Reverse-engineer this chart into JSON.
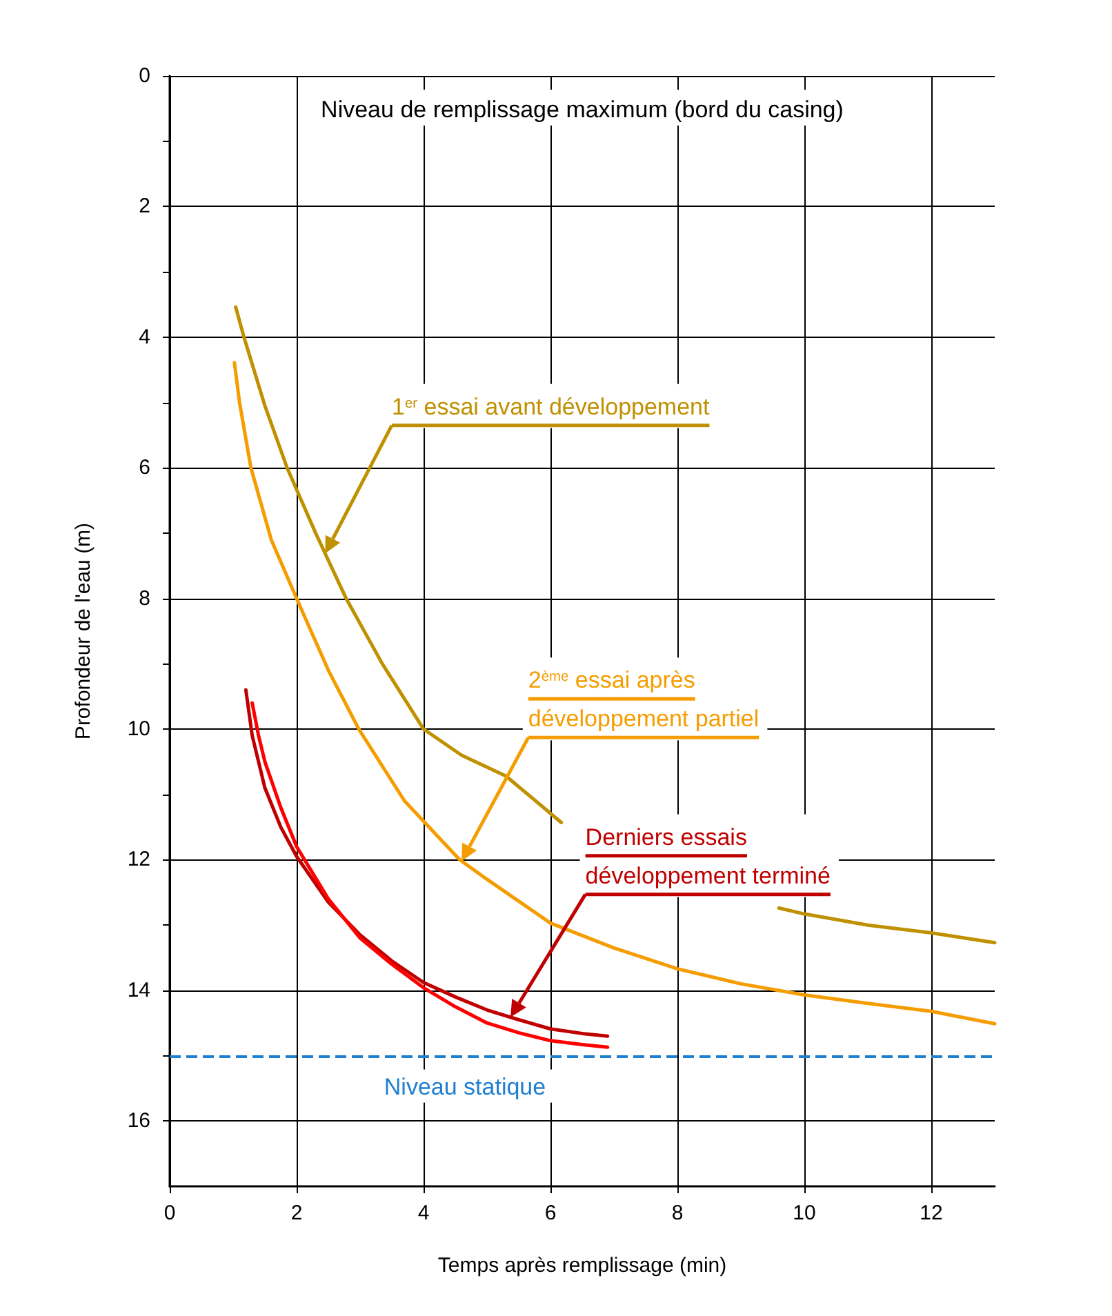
{
  "chart_data": {
    "type": "line",
    "xlabel": "Temps après remplissage (min)",
    "ylabel": "Profondeur de l'eau (m)",
    "annotations": [
      "Niveau de remplissage maximum (bord du casing)"
    ],
    "series": [
      {
        "name": "1$^{er}$ essai avant développement",
        "color": "#bf9000",
        "x": [
          1.04,
          1.17,
          1.5,
          1.85,
          2.3,
          2.78,
          3.35,
          4.0,
          4.6,
          5.3,
          6.17,
          8,
          9.6,
          10,
          11,
          12,
          13
        ],
        "values": [
          3.54,
          4,
          5.05,
          6,
          7,
          8,
          9,
          10,
          10.4,
          10.72,
          11.43,
          null,
          12.74,
          12.83,
          13.0,
          13.12,
          13.27
        ]
      },
      {
        "name": "2$^{ème}$ essai après\ndéveloppement partiel",
        "color": "#f59d00",
        "x": [
          1.02,
          1.1,
          1.28,
          1.6,
          2,
          2.5,
          2.98,
          3.7,
          4.57,
          5,
          6,
          7,
          8,
          9,
          10,
          11,
          12,
          13
        ],
        "values": [
          4.39,
          5,
          6,
          7.1,
          8,
          9.1,
          10,
          11.1,
          12,
          12.3,
          12.97,
          13.35,
          13.67,
          13.9,
          14.07,
          14.2,
          14.32,
          14.51
        ]
      },
      {
        "name": "Derniers essais\ndéveloppement terminé",
        "color": "#c00000",
        "x": [
          1.2,
          1.3,
          1.5,
          1.75,
          2,
          2.5,
          3,
          3.5,
          4,
          4.5,
          5,
          5.5,
          6,
          6.5,
          6.9
        ],
        "values": [
          9.4,
          10.1,
          10.9,
          11.5,
          11.95,
          12.65,
          13.15,
          13.55,
          13.88,
          14.1,
          14.3,
          14.45,
          14.59,
          14.66,
          14.7
        ]
      },
      {
        "color": "#ff0000",
        "x": [
          1.3,
          1.4,
          1.5,
          1.75,
          2,
          2.5,
          3,
          3.5,
          4,
          4.5,
          5,
          5.5,
          6,
          6.5,
          6.9
        ],
        "values": [
          9.6,
          10.1,
          10.5,
          11.2,
          11.8,
          12.6,
          13.2,
          13.6,
          13.96,
          14.25,
          14.5,
          14.65,
          14.77,
          14.83,
          14.87
        ]
      }
    ],
    "xlim": [
      0,
      13
    ],
    "xticks": [
      0,
      2,
      4,
      6,
      8,
      10,
      12
    ],
    "ylim": [
      17,
      0
    ],
    "yticks": [
      0,
      {
        "value": 1,
        "label": null
      },
      2,
      {
        "value": 3,
        "label": null
      },
      4,
      {
        "value": 5,
        "label": null
      },
      6,
      {
        "value": 7,
        "label": null
      },
      8,
      {
        "value": 9,
        "label": null
      },
      10,
      {
        "value": 11,
        "label": null
      },
      12,
      {
        "value": 13,
        "label": null
      },
      14,
      {
        "value": 15,
        "label": null
      },
      16
    ],
    "ref_lines": [
      {
        "axis": "y",
        "value": 15,
        "label": "Niveau statique",
        "color": "#1f7fd0",
        "line_style": "dashed"
      }
    ],
    "grid": true,
    "marker": "none",
    "line_style": "solid"
  }
}
